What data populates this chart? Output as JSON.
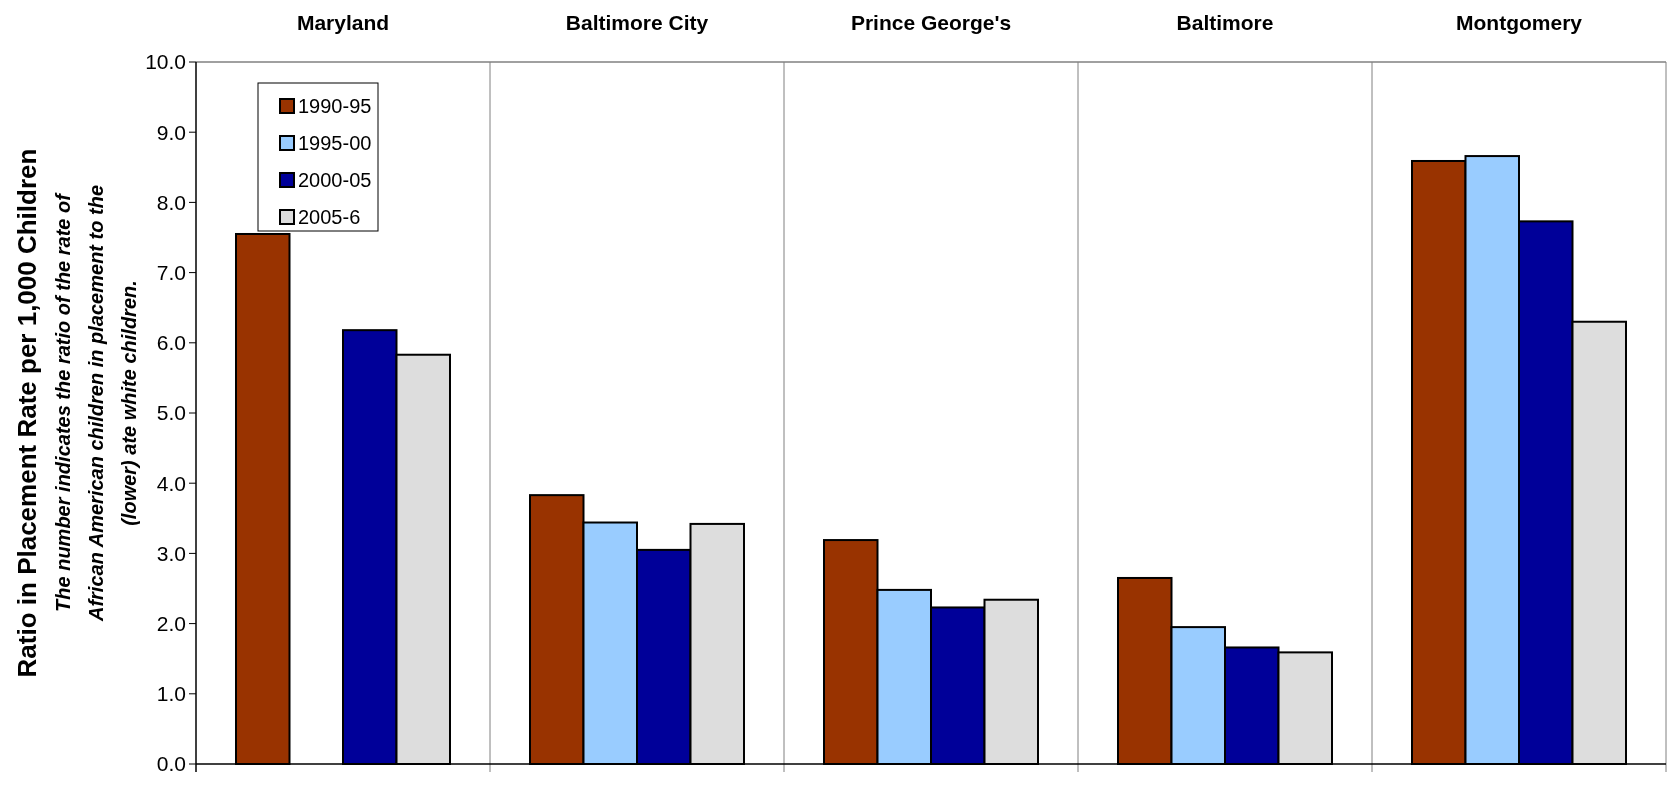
{
  "chart_data": {
    "type": "bar",
    "categories": [
      "Maryland",
      "Baltimore City",
      "Prince George's",
      "Baltimore",
      "Montgomery"
    ],
    "series": [
      {
        "name": "1990-95",
        "color": "#993300",
        "values": [
          7.55,
          3.83,
          3.19,
          2.65,
          8.59
        ]
      },
      {
        "name": "1995-00",
        "color": "#99ccff",
        "values": [
          null,
          3.44,
          2.48,
          1.95,
          8.66
        ]
      },
      {
        "name": "2000-05",
        "color": "#000099",
        "values": [
          6.18,
          3.05,
          2.23,
          1.66,
          7.73
        ]
      },
      {
        "name": "2005-6",
        "color": "#dddddd",
        "values": [
          5.83,
          3.42,
          2.34,
          1.59,
          6.3
        ]
      }
    ],
    "ylabel": "Ratio in Placement Rate per 1,000 Children",
    "annotations": [
      "The number indicates the ratio of the rate of African American children in placement to the (lower) ate  white children."
    ],
    "ylim": [
      0,
      10
    ],
    "yticks": [
      {
        "value": 0,
        "label": "0.0"
      },
      {
        "value": 1,
        "label": "1.0"
      },
      {
        "value": 2,
        "label": "2.0"
      },
      {
        "value": 3,
        "label": "3.0"
      },
      {
        "value": 4,
        "label": "4.0"
      },
      {
        "value": 5,
        "label": "5.0"
      },
      {
        "value": 6,
        "label": "6.0"
      },
      {
        "value": 7,
        "label": "7.0"
      },
      {
        "value": 8,
        "label": "8.0"
      },
      {
        "value": 9,
        "label": "9.0"
      },
      {
        "value": 10,
        "label": "10.0"
      }
    ],
    "legend": "top left"
  }
}
